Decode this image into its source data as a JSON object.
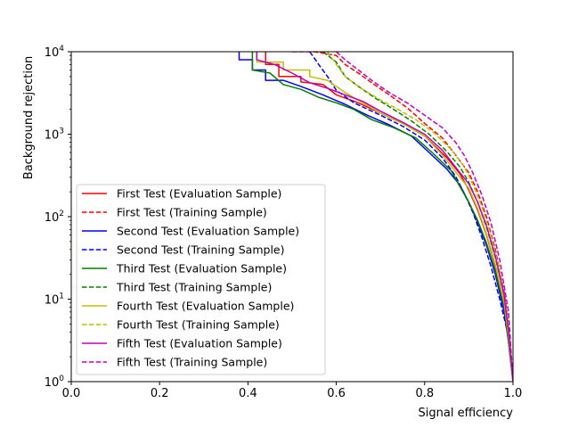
{
  "chart_data": {
    "type": "line",
    "title": "",
    "xlabel": "Signal efficiency",
    "ylabel": "Background rejection",
    "xlim": [
      0,
      1
    ],
    "ylim": [
      1,
      10000
    ],
    "yscale": "log",
    "grid": false,
    "legend_position": "lower-left",
    "x_ticks": [
      {
        "value": 0.0,
        "label": "0.0"
      },
      {
        "value": 0.2,
        "label": "0.2"
      },
      {
        "value": 0.4,
        "label": "0.4"
      },
      {
        "value": 0.6,
        "label": "0.6"
      },
      {
        "value": 0.8,
        "label": "0.8"
      },
      {
        "value": 1.0,
        "label": "1.0"
      }
    ],
    "y_ticks": [
      {
        "value": 1,
        "base": "10",
        "exp": "0"
      },
      {
        "value": 10,
        "base": "10",
        "exp": "1"
      },
      {
        "value": 100,
        "base": "10",
        "exp": "2"
      },
      {
        "value": 1000,
        "base": "10",
        "exp": "3"
      },
      {
        "value": 10000,
        "base": "10",
        "exp": "4"
      }
    ],
    "series": [
      {
        "name": "First Test (Evaluation Sample)",
        "color": "#ff0000",
        "dash": "solid",
        "points": [
          [
            0.44,
            10000
          ],
          [
            0.44,
            7000
          ],
          [
            0.47,
            7000
          ],
          [
            0.47,
            5000
          ],
          [
            0.52,
            5000
          ],
          [
            0.52,
            4300
          ],
          [
            0.57,
            4000
          ],
          [
            0.6,
            3000
          ],
          [
            0.65,
            2400
          ],
          [
            0.7,
            1800
          ],
          [
            0.75,
            1350
          ],
          [
            0.8,
            950
          ],
          [
            0.85,
            520
          ],
          [
            0.88,
            330
          ],
          [
            0.9,
            210
          ],
          [
            0.92,
            120
          ],
          [
            0.94,
            60
          ],
          [
            0.96,
            25
          ],
          [
            0.98,
            8
          ],
          [
            0.99,
            3.5
          ],
          [
            1.0,
            1
          ]
        ]
      },
      {
        "name": "First Test (Training Sample)",
        "color": "#ff0000",
        "dash": "dashed",
        "points": [
          [
            0.5,
            10000
          ],
          [
            0.55,
            10000
          ],
          [
            0.6,
            9000
          ],
          [
            0.62,
            7000
          ],
          [
            0.65,
            5500
          ],
          [
            0.68,
            4200
          ],
          [
            0.72,
            3000
          ],
          [
            0.76,
            2100
          ],
          [
            0.8,
            1350
          ],
          [
            0.84,
            900
          ],
          [
            0.87,
            560
          ],
          [
            0.9,
            340
          ],
          [
            0.92,
            200
          ],
          [
            0.94,
            100
          ],
          [
            0.96,
            40
          ],
          [
            0.98,
            12
          ],
          [
            0.99,
            5
          ],
          [
            1.0,
            1
          ]
        ]
      },
      {
        "name": "Second Test (Evaluation Sample)",
        "color": "#0000ff",
        "dash": "solid",
        "points": [
          [
            0.38,
            10000
          ],
          [
            0.38,
            8000
          ],
          [
            0.41,
            8000
          ],
          [
            0.41,
            6000
          ],
          [
            0.44,
            6000
          ],
          [
            0.44,
            4500
          ],
          [
            0.48,
            4500
          ],
          [
            0.52,
            3800
          ],
          [
            0.57,
            3000
          ],
          [
            0.62,
            2300
          ],
          [
            0.67,
            1700
          ],
          [
            0.72,
            1300
          ],
          [
            0.77,
            950
          ],
          [
            0.81,
            600
          ],
          [
            0.85,
            380
          ],
          [
            0.88,
            240
          ],
          [
            0.9,
            150
          ],
          [
            0.92,
            85
          ],
          [
            0.94,
            45
          ],
          [
            0.96,
            20
          ],
          [
            0.98,
            7
          ],
          [
            0.99,
            3
          ],
          [
            1.0,
            1
          ]
        ]
      },
      {
        "name": "Second Test (Training Sample)",
        "color": "#0000ff",
        "dash": "dashed",
        "points": [
          [
            0.54,
            10000
          ],
          [
            0.56,
            7000
          ],
          [
            0.58,
            5000
          ],
          [
            0.6,
            3400
          ],
          [
            0.64,
            2400
          ],
          [
            0.7,
            1700
          ],
          [
            0.75,
            1250
          ],
          [
            0.8,
            850
          ],
          [
            0.84,
            520
          ],
          [
            0.87,
            310
          ],
          [
            0.89,
            190
          ],
          [
            0.91,
            110
          ],
          [
            0.93,
            55
          ],
          [
            0.95,
            25
          ],
          [
            0.97,
            10
          ],
          [
            0.99,
            3.5
          ],
          [
            1.0,
            1
          ]
        ]
      },
      {
        "name": "Third Test (Evaluation Sample)",
        "color": "#008000",
        "dash": "solid",
        "points": [
          [
            0.41,
            10000
          ],
          [
            0.41,
            6000
          ],
          [
            0.45,
            5500
          ],
          [
            0.48,
            4000
          ],
          [
            0.52,
            3500
          ],
          [
            0.56,
            2800
          ],
          [
            0.6,
            2400
          ],
          [
            0.64,
            2000
          ],
          [
            0.68,
            1500
          ],
          [
            0.73,
            1200
          ],
          [
            0.78,
            900
          ],
          [
            0.82,
            580
          ],
          [
            0.86,
            360
          ],
          [
            0.88,
            230
          ],
          [
            0.9,
            150
          ],
          [
            0.92,
            90
          ],
          [
            0.94,
            48
          ],
          [
            0.96,
            22
          ],
          [
            0.98,
            8
          ],
          [
            0.99,
            3
          ],
          [
            1.0,
            1
          ]
        ]
      },
      {
        "name": "Third Test (Training Sample)",
        "color": "#008000",
        "dash": "dashed",
        "points": [
          [
            0.57,
            10000
          ],
          [
            0.6,
            7500
          ],
          [
            0.62,
            5000
          ],
          [
            0.65,
            3800
          ],
          [
            0.69,
            2700
          ],
          [
            0.73,
            2000
          ],
          [
            0.77,
            1450
          ],
          [
            0.81,
            1000
          ],
          [
            0.85,
            620
          ],
          [
            0.88,
            400
          ],
          [
            0.9,
            260
          ],
          [
            0.92,
            150
          ],
          [
            0.94,
            75
          ],
          [
            0.96,
            32
          ],
          [
            0.98,
            11
          ],
          [
            0.99,
            4
          ],
          [
            1.0,
            1
          ]
        ]
      },
      {
        "name": "Fourth Test (Evaluation Sample)",
        "color": "#bfbf00",
        "dash": "solid",
        "points": [
          [
            0.42,
            10000
          ],
          [
            0.42,
            7500
          ],
          [
            0.48,
            7500
          ],
          [
            0.48,
            6000
          ],
          [
            0.54,
            6000
          ],
          [
            0.54,
            5000
          ],
          [
            0.58,
            4500
          ],
          [
            0.62,
            3200
          ],
          [
            0.66,
            2400
          ],
          [
            0.7,
            1800
          ],
          [
            0.75,
            1350
          ],
          [
            0.8,
            950
          ],
          [
            0.84,
            560
          ],
          [
            0.87,
            350
          ],
          [
            0.9,
            220
          ],
          [
            0.92,
            125
          ],
          [
            0.94,
            62
          ],
          [
            0.96,
            26
          ],
          [
            0.98,
            9
          ],
          [
            0.99,
            3.5
          ],
          [
            1.0,
            1
          ]
        ]
      },
      {
        "name": "Fourth Test (Training Sample)",
        "color": "#bfbf00",
        "dash": "dashed",
        "points": [
          [
            0.58,
            10000
          ],
          [
            0.6,
            7000
          ],
          [
            0.62,
            5000
          ],
          [
            0.66,
            3500
          ],
          [
            0.7,
            2600
          ],
          [
            0.74,
            2000
          ],
          [
            0.78,
            1500
          ],
          [
            0.82,
            1050
          ],
          [
            0.86,
            650
          ],
          [
            0.89,
            400
          ],
          [
            0.91,
            240
          ],
          [
            0.93,
            130
          ],
          [
            0.95,
            60
          ],
          [
            0.97,
            22
          ],
          [
            0.99,
            5
          ],
          [
            1.0,
            1
          ]
        ]
      },
      {
        "name": "Fifth Test (Evaluation Sample)",
        "color": "#bf00bf",
        "dash": "solid",
        "points": [
          [
            0.42,
            10000
          ],
          [
            0.42,
            8000
          ],
          [
            0.46,
            7000
          ],
          [
            0.5,
            5500
          ],
          [
            0.54,
            4200
          ],
          [
            0.58,
            3600
          ],
          [
            0.62,
            3000
          ],
          [
            0.66,
            2500
          ],
          [
            0.7,
            1900
          ],
          [
            0.75,
            1400
          ],
          [
            0.8,
            1000
          ],
          [
            0.84,
            640
          ],
          [
            0.87,
            400
          ],
          [
            0.9,
            250
          ],
          [
            0.92,
            150
          ],
          [
            0.94,
            78
          ],
          [
            0.96,
            33
          ],
          [
            0.98,
            11
          ],
          [
            0.99,
            4
          ],
          [
            1.0,
            1
          ]
        ]
      },
      {
        "name": "Fifth Test (Training Sample)",
        "color": "#bf00bf",
        "dash": "dashed",
        "points": [
          [
            0.6,
            10000
          ],
          [
            0.62,
            8000
          ],
          [
            0.65,
            6000
          ],
          [
            0.68,
            4500
          ],
          [
            0.72,
            3200
          ],
          [
            0.76,
            2400
          ],
          [
            0.8,
            1700
          ],
          [
            0.84,
            1200
          ],
          [
            0.87,
            800
          ],
          [
            0.89,
            550
          ],
          [
            0.91,
            330
          ],
          [
            0.93,
            180
          ],
          [
            0.95,
            85
          ],
          [
            0.97,
            30
          ],
          [
            0.99,
            7
          ],
          [
            1.0,
            1
          ]
        ]
      }
    ]
  }
}
